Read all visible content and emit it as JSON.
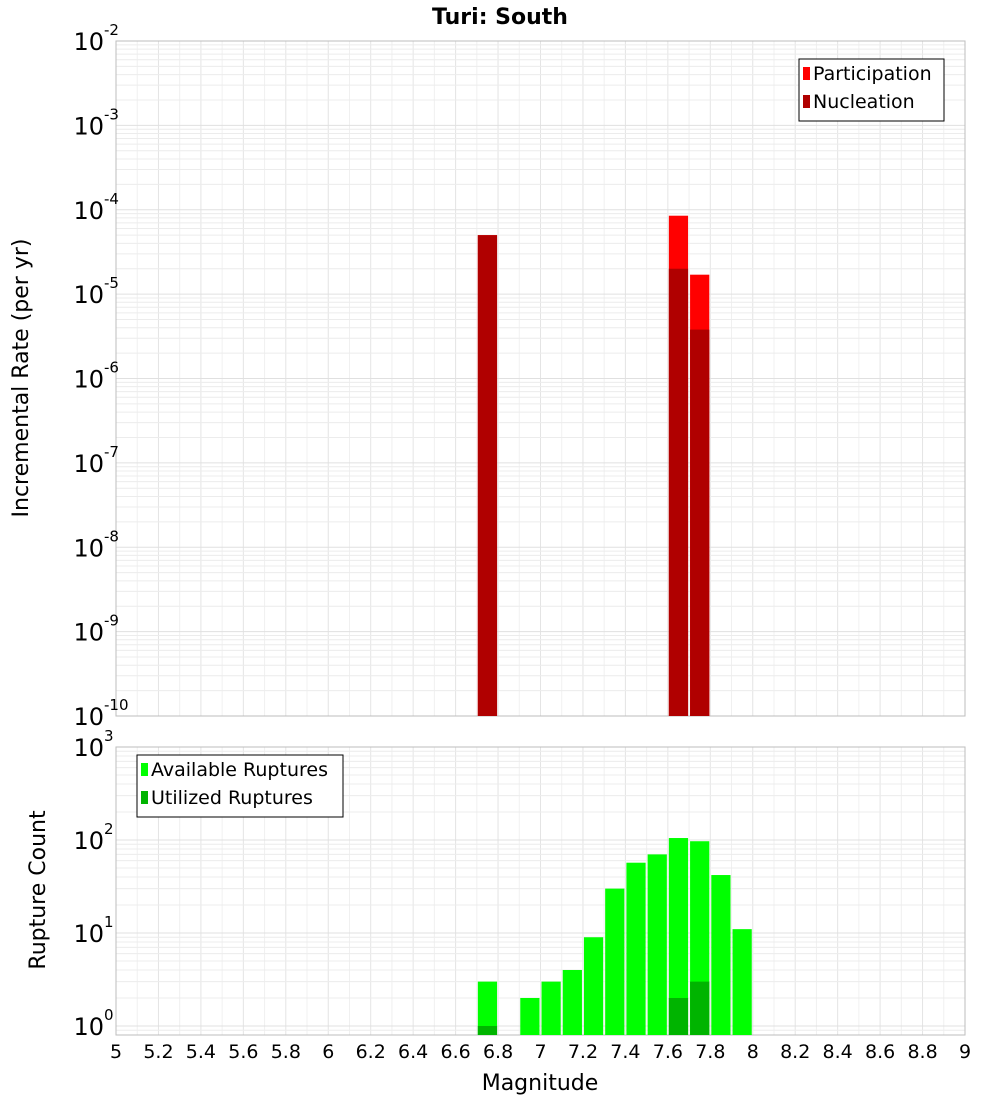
{
  "chart_data": [
    {
      "type": "bar",
      "title": "Turi: South",
      "xlabel": "",
      "ylabel": "Incremental Rate (per yr)",
      "yscale": "log",
      "ylim": [
        1e-10,
        0.01
      ],
      "xlim": [
        5,
        9
      ],
      "y_tick_labels": [
        {
          "base": "10",
          "exp": "-10"
        },
        {
          "base": "10",
          "exp": "-9"
        },
        {
          "base": "10",
          "exp": "-8"
        },
        {
          "base": "10",
          "exp": "-7"
        },
        {
          "base": "10",
          "exp": "-6"
        },
        {
          "base": "10",
          "exp": "-5"
        },
        {
          "base": "10",
          "exp": "-4"
        },
        {
          "base": "10",
          "exp": "-3"
        },
        {
          "base": "10",
          "exp": "-2"
        }
      ],
      "grid": true,
      "legend_position": "top-right",
      "series": [
        {
          "name": "Participation",
          "color": "#ff0000",
          "x": [
            6.75,
            7.65,
            7.75
          ],
          "values": [
            5e-05,
            8.5e-05,
            1.7e-05
          ]
        },
        {
          "name": "Nucleation",
          "color": "#b00000",
          "x": [
            6.75,
            7.65,
            7.75
          ],
          "values": [
            5e-05,
            2e-05,
            3.8e-06
          ]
        }
      ]
    },
    {
      "type": "bar",
      "title": "",
      "xlabel": "Magnitude",
      "ylabel": "Rupture Count",
      "yscale": "log",
      "ylim": [
        0.8,
        1000
      ],
      "xlim": [
        5,
        9
      ],
      "x_tick_labels": [
        "5",
        "5.2",
        "5.4",
        "5.6",
        "5.8",
        "6",
        "6.2",
        "6.4",
        "6.6",
        "6.8",
        "7",
        "7.2",
        "7.4",
        "7.6",
        "7.8",
        "8",
        "8.2",
        "8.4",
        "8.6",
        "8.8",
        "9"
      ],
      "y_tick_labels": [
        {
          "base": "10",
          "exp": "0"
        },
        {
          "base": "10",
          "exp": "1"
        },
        {
          "base": "10",
          "exp": "2"
        },
        {
          "base": "10",
          "exp": "3"
        }
      ],
      "grid": true,
      "legend_position": "top-left",
      "series": [
        {
          "name": "Available Ruptures",
          "color": "#00ff00",
          "x": [
            6.75,
            6.95,
            7.05,
            7.15,
            7.25,
            7.35,
            7.45,
            7.55,
            7.65,
            7.75,
            7.85,
            7.95
          ],
          "values": [
            3,
            2,
            3,
            4,
            9,
            30,
            57,
            70,
            105,
            97,
            42,
            11
          ]
        },
        {
          "name": "Utilized Ruptures",
          "color": "#00b400",
          "x": [
            6.75,
            7.65,
            7.75
          ],
          "values": [
            1,
            2,
            3
          ]
        }
      ]
    }
  ]
}
